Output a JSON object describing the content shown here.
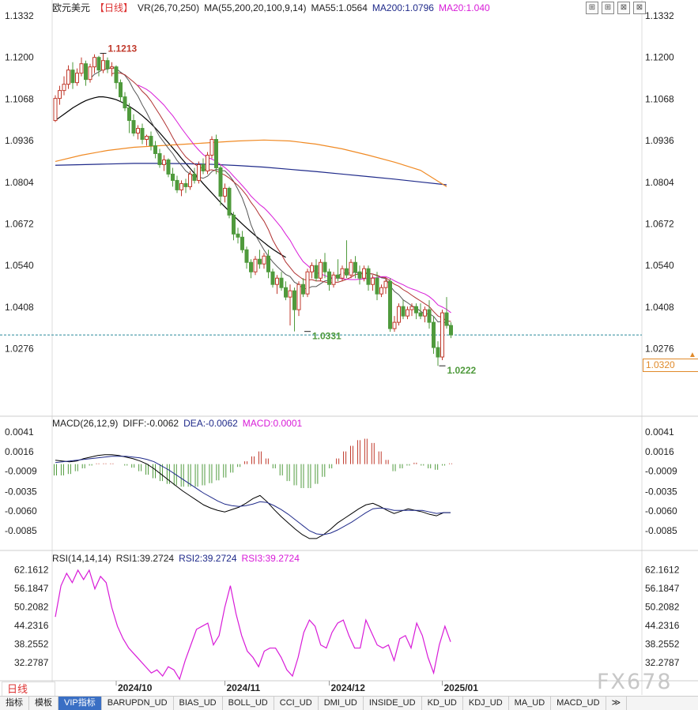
{
  "main_header": {
    "symbol": "欧元美元",
    "period": "【日线】",
    "vr": "VR(26,70,250)",
    "ma": "MA(55,200,20,100,9,14)",
    "ma55": "MA55:1.0564",
    "ma200": "MA200:1.0796",
    "ma20": "MA20:1.040"
  },
  "macd_header": {
    "name": "MACD(26,12,9)",
    "diff": "DIFF:-0.0062",
    "dea": "DEA:-0.0062",
    "macd": "MACD:0.0001"
  },
  "rsi_header": {
    "name": "RSI(14,14,14)",
    "rsi1": "RSI1:39.2724",
    "rsi2": "RSI2:39.2724",
    "rsi3": "RSI3:39.2724"
  },
  "current_price": "1.0320",
  "period_tag": "日线",
  "watermark": "FX678",
  "window_buttons": [
    "⊞",
    "⊞",
    "⊠",
    "⊠"
  ],
  "tabs": [
    "指标",
    "模板",
    "VIP指标",
    "BARUPDN_UD",
    "BIAS_UD",
    "BOLL_UD",
    "CCI_UD",
    "DMI_UD",
    "INSIDE_UD",
    "KD_UD",
    "KDJ_UD",
    "MA_UD",
    "MACD_UD",
    "≫"
  ],
  "colors": {
    "up": "#c0392b",
    "down": "#4f9a3c",
    "ma55": "#000000",
    "ma200": "#1f2a8a",
    "ma20": "#d81bd8",
    "ma100": "#f08a24",
    "ma9": "#555555",
    "ma14": "#b03030",
    "dea": "#1f2a8a",
    "diff": "#000000",
    "rsi": "#d81bd8",
    "accent": "#e08a2a"
  },
  "chart_data": [
    {
      "type": "candlestick",
      "title": "欧元美元 日线",
      "y_axis": {
        "min": 1.021,
        "max": 1.1332,
        "ticks": [
          1.1332,
          1.12,
          1.1068,
          1.0936,
          1.0804,
          1.0672,
          1.054,
          1.0408,
          1.0276
        ]
      },
      "x_ticks": [
        "2024/10",
        "2024/11",
        "2024/12",
        "2025/01"
      ],
      "x_tick_index": [
        14,
        39,
        63,
        89
      ],
      "annotations": [
        {
          "label": "1.1213",
          "index": 11,
          "value": 1.1213
        },
        {
          "label": "1.0331",
          "index": 58,
          "value": 1.0331
        },
        {
          "label": "1.0222",
          "index": 89,
          "value": 1.0222
        }
      ],
      "last_price": 1.032,
      "candles": [
        [
          1.1,
          1.108,
          1.107,
          1.0995
        ],
        [
          1.107,
          1.111,
          1.1095,
          1.105
        ],
        [
          1.1095,
          1.114,
          1.1115,
          1.108
        ],
        [
          1.1115,
          1.1175,
          1.116,
          1.11
        ],
        [
          1.116,
          1.1185,
          1.112,
          1.11
        ],
        [
          1.112,
          1.1165,
          1.115,
          1.111
        ],
        [
          1.115,
          1.12,
          1.118,
          1.114
        ],
        [
          1.118,
          1.119,
          1.113,
          1.111
        ],
        [
          1.113,
          1.118,
          1.117,
          1.112
        ],
        [
          1.117,
          1.121,
          1.12,
          1.115
        ],
        [
          1.12,
          1.1205,
          1.116,
          1.114
        ],
        [
          1.116,
          1.1213,
          1.119,
          1.115
        ],
        [
          1.119,
          1.12,
          1.1165,
          1.115
        ],
        [
          1.1165,
          1.1185,
          1.117,
          1.114
        ],
        [
          1.117,
          1.1175,
          1.112,
          1.11
        ],
        [
          1.112,
          1.113,
          1.1075,
          1.106
        ],
        [
          1.1075,
          1.109,
          1.104,
          1.103
        ],
        [
          1.104,
          1.1055,
          1.1,
          1.096
        ],
        [
          1.1,
          1.102,
          1.096,
          1.095
        ],
        [
          1.096,
          1.0985,
          1.0975,
          1.094
        ],
        [
          1.0975,
          1.099,
          1.094,
          1.0925
        ],
        [
          1.094,
          1.0955,
          1.095,
          1.092
        ],
        [
          1.095,
          1.0965,
          1.092,
          1.0905
        ],
        [
          1.092,
          1.0935,
          1.0895,
          1.088
        ],
        [
          1.0895,
          1.091,
          1.086,
          1.085
        ],
        [
          1.086,
          1.089,
          1.0875,
          1.084
        ],
        [
          1.0875,
          1.088,
          1.083,
          1.082
        ],
        [
          1.083,
          1.085,
          1.081,
          1.079
        ],
        [
          1.081,
          1.0825,
          1.078,
          1.077
        ],
        [
          1.078,
          1.081,
          1.08,
          1.076
        ],
        [
          1.08,
          1.0815,
          1.079,
          1.077
        ],
        [
          1.079,
          1.084,
          1.083,
          1.078
        ],
        [
          1.083,
          1.085,
          1.081,
          1.08
        ],
        [
          1.081,
          1.087,
          1.086,
          1.08
        ],
        [
          1.086,
          1.088,
          1.084,
          1.083
        ],
        [
          1.084,
          1.09,
          1.089,
          1.083
        ],
        [
          1.089,
          1.095,
          1.094,
          1.088
        ],
        [
          1.094,
          1.0955,
          1.085,
          1.083
        ],
        [
          1.085,
          1.086,
          1.076,
          1.073
        ],
        [
          1.076,
          1.08,
          1.0785,
          1.074
        ],
        [
          1.0785,
          1.079,
          1.07,
          1.069
        ],
        [
          1.07,
          1.071,
          1.064,
          1.062
        ],
        [
          1.064,
          1.066,
          1.063,
          1.061
        ],
        [
          1.063,
          1.065,
          1.059,
          1.058
        ],
        [
          1.059,
          1.06,
          1.055,
          1.053
        ],
        [
          1.055,
          1.056,
          1.052,
          1.05
        ],
        [
          1.052,
          1.057,
          1.056,
          1.051
        ],
        [
          1.056,
          1.059,
          1.0545,
          1.053
        ],
        [
          1.0545,
          1.058,
          1.057,
          1.053
        ],
        [
          1.057,
          1.059,
          1.052,
          1.05
        ],
        [
          1.052,
          1.053,
          1.048,
          1.047
        ],
        [
          1.048,
          1.051,
          1.05,
          1.045
        ],
        [
          1.05,
          1.052,
          1.047,
          1.046
        ],
        [
          1.047,
          1.049,
          1.044,
          1.043
        ],
        [
          1.044,
          1.048,
          1.046,
          1.035
        ],
        [
          1.046,
          1.047,
          1.04,
          1.0331
        ],
        [
          1.04,
          1.049,
          1.048,
          1.038
        ],
        [
          1.048,
          1.05,
          1.045,
          1.044
        ],
        [
          1.045,
          1.053,
          1.052,
          1.044
        ],
        [
          1.052,
          1.055,
          1.054,
          1.05
        ],
        [
          1.054,
          1.056,
          1.05,
          1.049
        ],
        [
          1.05,
          1.056,
          1.055,
          1.049
        ],
        [
          1.055,
          1.058,
          1.052,
          1.05
        ],
        [
          1.052,
          1.053,
          1.048,
          1.046
        ],
        [
          1.048,
          1.052,
          1.051,
          1.047
        ],
        [
          1.051,
          1.056,
          1.05,
          1.049
        ],
        [
          1.05,
          1.054,
          1.053,
          1.049
        ],
        [
          1.053,
          1.062,
          1.051,
          1.05
        ],
        [
          1.051,
          1.056,
          1.055,
          1.05
        ],
        [
          1.055,
          1.057,
          1.052,
          1.05
        ],
        [
          1.052,
          1.054,
          1.05,
          1.048
        ],
        [
          1.05,
          1.054,
          1.053,
          1.049
        ],
        [
          1.053,
          1.054,
          1.048,
          1.046
        ],
        [
          1.048,
          1.051,
          1.05,
          1.046
        ],
        [
          1.05,
          1.052,
          1.045,
          1.043
        ],
        [
          1.045,
          1.048,
          1.047,
          1.044
        ],
        [
          1.047,
          1.05,
          1.049,
          1.045
        ],
        [
          1.049,
          1.05,
          1.034,
          1.033
        ],
        [
          1.034,
          1.038,
          1.036,
          1.033
        ],
        [
          1.036,
          1.042,
          1.041,
          1.035
        ],
        [
          1.041,
          1.043,
          1.038,
          1.037
        ],
        [
          1.038,
          1.041,
          1.04,
          1.037
        ],
        [
          1.04,
          1.042,
          1.041,
          1.038
        ],
        [
          1.041,
          1.042,
          1.039,
          1.037
        ],
        [
          1.039,
          1.042,
          1.038,
          1.037
        ],
        [
          1.038,
          1.041,
          1.04,
          1.036
        ],
        [
          1.04,
          1.043,
          1.036,
          1.034
        ],
        [
          1.036,
          1.038,
          1.028,
          1.026
        ],
        [
          1.028,
          1.03,
          1.025,
          1.0222
        ],
        [
          1.025,
          1.04,
          1.039,
          1.024
        ],
        [
          1.039,
          1.044,
          1.035,
          1.034
        ],
        [
          1.035,
          1.036,
          1.032,
          1.031
        ]
      ],
      "ma_lines": [
        {
          "name": "MA55",
          "values": [
            1.1,
            1.101,
            1.102,
            1.103,
            1.104,
            1.1048,
            1.1056,
            1.1063,
            1.1068,
            1.1072,
            1.1075,
            1.1075,
            1.1073,
            1.107,
            1.1066,
            1.106,
            1.1053,
            1.1045,
            1.1036,
            1.1026,
            1.1015,
            1.1003,
            1.099,
            1.0976,
            1.0961,
            1.0945,
            1.0929,
            1.0913,
            1.0897,
            1.088,
            1.0864,
            1.0848,
            1.0832,
            1.0816,
            1.08,
            1.0785,
            1.077,
            1.0755,
            1.074,
            1.0726,
            1.0712,
            1.0698,
            1.0685,
            1.0672,
            1.0659,
            1.0647,
            1.0635,
            1.0624,
            1.0613,
            1.0602,
            1.0592,
            1.0583,
            1.0574,
            1.0566
          ],
          "start": 0
        },
        {
          "name": "MA200",
          "values": [
            1.0858,
            1.086,
            1.0862,
            1.0864,
            1.0864,
            1.0863,
            1.0861,
            1.0857,
            1.0852,
            1.0845,
            1.0838,
            1.083,
            1.0822,
            1.0814,
            1.0805,
            1.0796
          ],
          "start": 0,
          "step": 6
        },
        {
          "name": "MA100",
          "values": [
            1.087,
            1.089,
            1.0905,
            1.0915,
            1.092,
            1.0925,
            1.093,
            1.0935,
            1.0938,
            1.0935,
            1.0925,
            1.091,
            1.089,
            1.0868,
            1.0842,
            1.079
          ],
          "start": 0,
          "step": 6
        }
      ]
    },
    {
      "type": "macd",
      "title": "MACD(26,12,9)",
      "y_axis": {
        "ticks": [
          0.0041,
          0.0016,
          -0.0009,
          -0.0035,
          -0.006,
          -0.0085
        ]
      },
      "diff": [
        0.0005,
        0.0004,
        0.0003,
        0.0004,
        0.0007,
        0.0009,
        0.0011,
        0.0012,
        0.0012,
        0.0011,
        0.0009,
        0.0007,
        0.0004,
        0.0,
        -0.0006,
        -0.0013,
        -0.002,
        -0.0027,
        -0.0034,
        -0.004,
        -0.0046,
        -0.0052,
        -0.0056,
        -0.0059,
        -0.0061,
        -0.0058,
        -0.0055,
        -0.005,
        -0.0044,
        -0.004,
        -0.0048,
        -0.0058,
        -0.0067,
        -0.0075,
        -0.0083,
        -0.009,
        -0.0095,
        -0.0095,
        -0.009,
        -0.0083,
        -0.0075,
        -0.0069,
        -0.0063,
        -0.0057,
        -0.0052,
        -0.005,
        -0.0054,
        -0.0059,
        -0.0063,
        -0.006,
        -0.0057,
        -0.0059,
        -0.0061,
        -0.0064,
        -0.0066,
        -0.0062,
        -0.0062
      ],
      "dea": [
        0.0002,
        0.0003,
        0.0004,
        0.0005,
        0.0006,
        0.0007,
        0.0008,
        0.0009,
        0.001,
        0.001,
        0.001,
        0.0009,
        0.0008,
        0.0006,
        0.0003,
        -0.0002,
        -0.0007,
        -0.0013,
        -0.0019,
        -0.0025,
        -0.0031,
        -0.0037,
        -0.0042,
        -0.0047,
        -0.0051,
        -0.0053,
        -0.0054,
        -0.0053,
        -0.0051,
        -0.0048,
        -0.0049,
        -0.0053,
        -0.0058,
        -0.0064,
        -0.0071,
        -0.0078,
        -0.0085,
        -0.0089,
        -0.009,
        -0.0088,
        -0.0084,
        -0.0079,
        -0.0074,
        -0.0068,
        -0.0062,
        -0.0057,
        -0.0056,
        -0.0057,
        -0.0059,
        -0.0059,
        -0.0059,
        -0.0059,
        -0.0059,
        -0.0061,
        -0.0063,
        -0.0062,
        -0.0062
      ],
      "hist": [
        -0.0016,
        -0.0016,
        -0.0014,
        -0.001,
        -0.0006,
        -0.0002,
        0.0001,
        0.0001,
        0.0001,
        0.0,
        -0.0002,
        -0.0005,
        -0.001,
        -0.0015,
        -0.002,
        -0.0024,
        -0.0028,
        -0.003,
        -0.0032,
        -0.0032,
        -0.0032,
        -0.003,
        -0.0027,
        -0.0023,
        -0.0019,
        -0.0012,
        -0.0004,
        0.0004,
        0.0011,
        0.0018,
        0.0008,
        -0.0006,
        -0.0016,
        -0.0024,
        -0.003,
        -0.0034,
        -0.0034,
        -0.0028,
        -0.0018,
        -0.0006,
        0.0008,
        0.0018,
        0.0026,
        0.0034,
        0.0036,
        0.003,
        0.0018,
        0.0006,
        -0.001,
        -0.0006,
        -0.0002,
        0.0002,
        -0.0002,
        -0.0006,
        -0.0008,
        -0.0002,
        0.0001
      ]
    },
    {
      "type": "line",
      "title": "RSI(14,14,14)",
      "y_axis": {
        "min": 27.0,
        "max": 63.0,
        "ticks": [
          62.1612,
          56.1847,
          50.2082,
          44.2316,
          38.2552,
          32.2787
        ]
      },
      "rsi": [
        47,
        57,
        61,
        58,
        62,
        59,
        62,
        56,
        60,
        58,
        50,
        44,
        40,
        37,
        35,
        33,
        31,
        29,
        30,
        28,
        31,
        30,
        27,
        33,
        38,
        43,
        44,
        45,
        38,
        41,
        50,
        57,
        48,
        41,
        36,
        34,
        31,
        36,
        37,
        37,
        34,
        30,
        28,
        34,
        42,
        46,
        44,
        38,
        37,
        42,
        45,
        46,
        41,
        37,
        37,
        46,
        42,
        38,
        37,
        38,
        33,
        40,
        41,
        37,
        45,
        41,
        34,
        29,
        38,
        44,
        39
      ]
    }
  ]
}
